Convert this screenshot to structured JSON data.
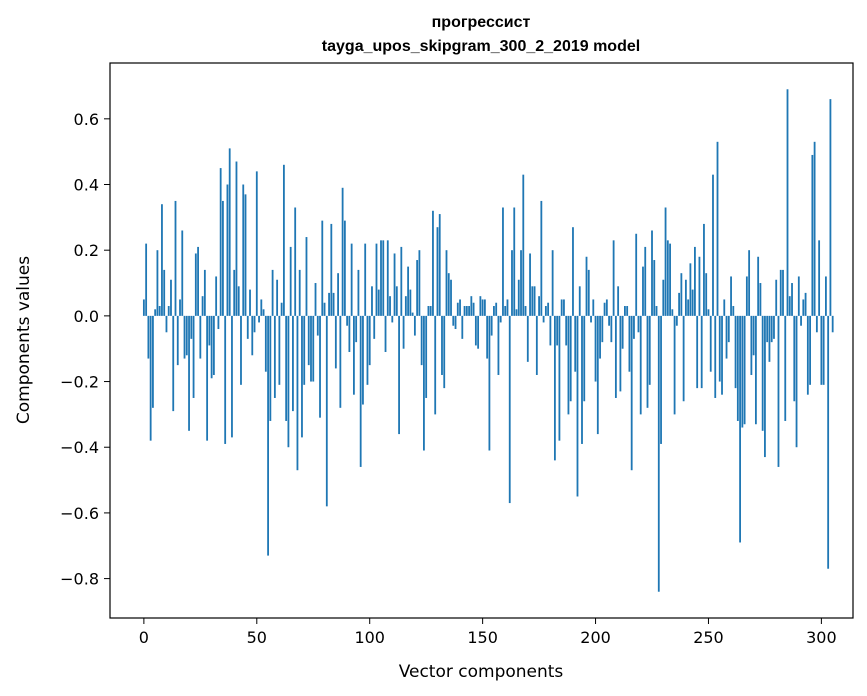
{
  "chart_data": {
    "type": "bar",
    "title": "прогрессист",
    "subtitle": "tayga_upos_skipgram_300_2_2019 model",
    "xlabel": "Vector components",
    "ylabel": "Components values",
    "xlim": [
      -15,
      314
    ],
    "ylim": [
      -0.92,
      0.77
    ],
    "x_ticks": [
      0,
      50,
      100,
      150,
      200,
      250,
      300
    ],
    "y_ticks": [
      0.6,
      0.4,
      0.2,
      0.0,
      -0.2,
      -0.4,
      -0.6,
      -0.8
    ],
    "y_tick_labels": [
      "0.6",
      "0.4",
      "0.2",
      "0.0",
      "−0.2",
      "−0.4",
      "−0.6",
      "−0.8"
    ],
    "bar_color": "#1f77b4",
    "grid": false,
    "legend": "none",
    "values": [
      0.05,
      0.22,
      -0.13,
      -0.38,
      -0.28,
      0.02,
      0.2,
      0.03,
      0.34,
      0.14,
      -0.05,
      0.03,
      0.11,
      -0.29,
      0.35,
      -0.15,
      0.05,
      0.26,
      -0.13,
      -0.12,
      -0.35,
      -0.07,
      -0.25,
      0.19,
      0.21,
      -0.13,
      0.06,
      0.14,
      -0.38,
      -0.09,
      -0.19,
      -0.18,
      0.12,
      -0.04,
      0.45,
      0.35,
      -0.39,
      0.4,
      0.51,
      -0.37,
      0.14,
      0.47,
      0.09,
      -0.21,
      0.4,
      0.37,
      -0.07,
      0.08,
      -0.12,
      -0.05,
      0.44,
      -0.02,
      0.05,
      0.02,
      -0.17,
      -0.73,
      -0.32,
      0.14,
      -0.25,
      0.11,
      -0.21,
      0.04,
      0.46,
      -0.32,
      -0.4,
      0.21,
      -0.29,
      0.33,
      -0.47,
      0.14,
      -0.37,
      -0.21,
      0.24,
      -0.15,
      -0.2,
      -0.2,
      0.1,
      -0.06,
      -0.31,
      0.29,
      0.04,
      -0.58,
      0.07,
      0.28,
      0.07,
      -0.16,
      0.13,
      -0.28,
      0.39,
      0.29,
      -0.03,
      -0.11,
      0.22,
      -0.24,
      -0.08,
      0.14,
      -0.46,
      -0.27,
      0.22,
      -0.21,
      -0.15,
      0.09,
      -0.07,
      0.22,
      0.08,
      0.23,
      0.23,
      -0.11,
      0.23,
      0.06,
      -0.02,
      0.19,
      0.09,
      -0.36,
      0.21,
      -0.1,
      0.06,
      0.15,
      0.08,
      0.01,
      -0.06,
      0.17,
      0.2,
      -0.15,
      -0.41,
      -0.25,
      0.03,
      0.03,
      0.32,
      -0.3,
      0.27,
      0.31,
      -0.18,
      -0.22,
      0.2,
      0.13,
      0.11,
      -0.03,
      -0.04,
      0.04,
      0.05,
      -0.07,
      0.03,
      0.03,
      0.03,
      0.06,
      0.04,
      -0.09,
      -0.1,
      0.06,
      0.05,
      0.05,
      -0.13,
      -0.41,
      -0.06,
      0.03,
      0.04,
      -0.18,
      -0.02,
      0.33,
      0.03,
      0.05,
      -0.57,
      0.2,
      0.33,
      0.02,
      0.11,
      0.2,
      0.43,
      0.03,
      -0.14,
      0.19,
      0.09,
      0.09,
      -0.18,
      0.06,
      0.35,
      -0.02,
      0.03,
      0.04,
      -0.09,
      0.2,
      -0.44,
      -0.09,
      -0.38,
      0.05,
      0.05,
      -0.09,
      -0.3,
      -0.26,
      0.27,
      -0.17,
      -0.55,
      0.09,
      -0.39,
      -0.26,
      0.18,
      0.14,
      -0.02,
      0.05,
      -0.2,
      -0.36,
      -0.13,
      -0.08,
      0.04,
      0.05,
      -0.03,
      -0.08,
      0.23,
      -0.25,
      0.09,
      -0.23,
      -0.1,
      0.03,
      0.03,
      -0.17,
      -0.47,
      -0.07,
      0.25,
      -0.05,
      -0.3,
      0.15,
      0.21,
      -0.28,
      -0.21,
      0.26,
      0.17,
      0.03,
      -0.84,
      -0.39,
      0.11,
      0.33,
      0.23,
      0.22,
      0.02,
      -0.3,
      -0.03,
      0.07,
      0.13,
      -0.26,
      0.11,
      0.05,
      0.16,
      0.08,
      0.21,
      -0.22,
      0.18,
      -0.22,
      0.28,
      0.13,
      0.02,
      -0.17,
      0.43,
      -0.25,
      0.53,
      -0.2,
      -0.24,
      0.05,
      -0.13,
      -0.08,
      0.12,
      0.03,
      -0.22,
      -0.32,
      -0.69,
      -0.34,
      -0.33,
      0.12,
      0.2,
      -0.18,
      -0.12,
      -0.33,
      0.18,
      0.1,
      -0.35,
      -0.43,
      -0.08,
      -0.14,
      -0.08,
      -0.07,
      0.11,
      -0.46,
      0.14,
      0.14,
      -0.32,
      0.69,
      0.06,
      0.1,
      -0.26,
      -0.4,
      0.12,
      -0.03,
      0.05,
      0.07,
      -0.24,
      -0.21,
      0.49,
      0.53,
      -0.05,
      0.23,
      -0.21,
      -0.21,
      0.12,
      -0.77,
      0.66,
      -0.05
    ]
  }
}
